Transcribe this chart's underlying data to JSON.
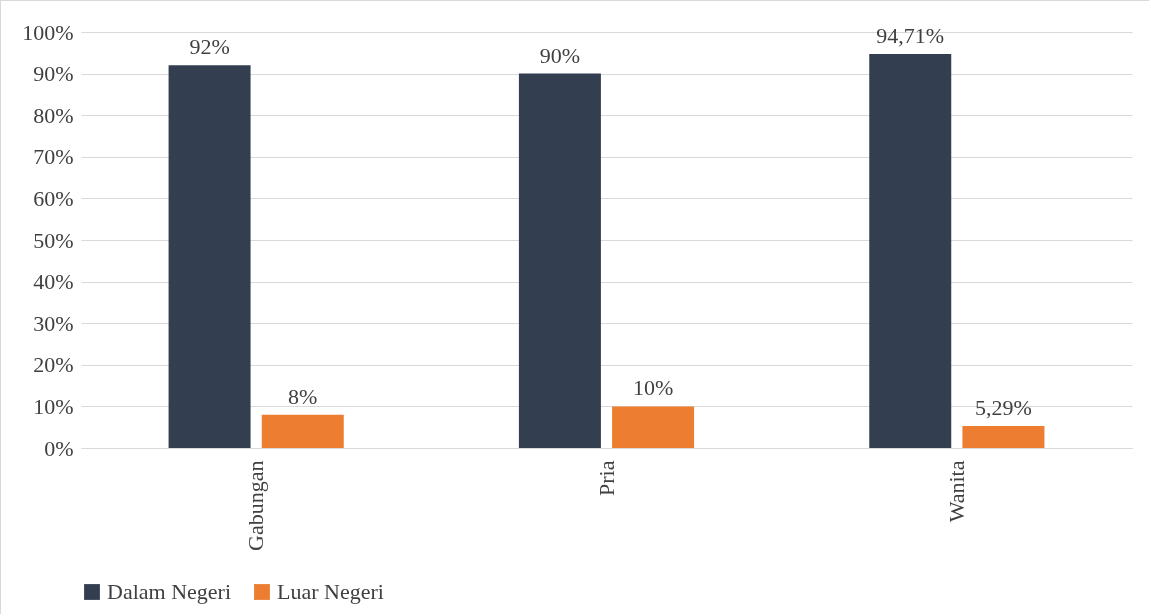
{
  "chart_data": {
    "type": "bar",
    "categories": [
      "Gabungan",
      "Pria",
      "Wanita"
    ],
    "series": [
      {
        "name": "Dalam Negeri",
        "color": "#333f50",
        "values": [
          92,
          90,
          94.71
        ],
        "value_labels": [
          "92%",
          "90%",
          "94,71%"
        ]
      },
      {
        "name": "Luar Negeri",
        "color": "#ed7d31",
        "values": [
          8,
          10,
          5.29
        ],
        "value_labels": [
          "8%",
          "10%",
          "5,29%"
        ]
      }
    ],
    "ylim": [
      0,
      100
    ],
    "yticks": [
      {
        "value": 0,
        "label": "0%"
      },
      {
        "value": 10,
        "label": "10%"
      },
      {
        "value": 20,
        "label": "20%"
      },
      {
        "value": 30,
        "label": "30%"
      },
      {
        "value": 40,
        "label": "40%"
      },
      {
        "value": 50,
        "label": "50%"
      },
      {
        "value": 60,
        "label": "60%"
      },
      {
        "value": 70,
        "label": "70%"
      },
      {
        "value": 80,
        "label": "80%"
      },
      {
        "value": 90,
        "label": "90%"
      },
      {
        "value": 100,
        "label": "100%"
      }
    ],
    "grid": "y",
    "legend": "bottom"
  }
}
